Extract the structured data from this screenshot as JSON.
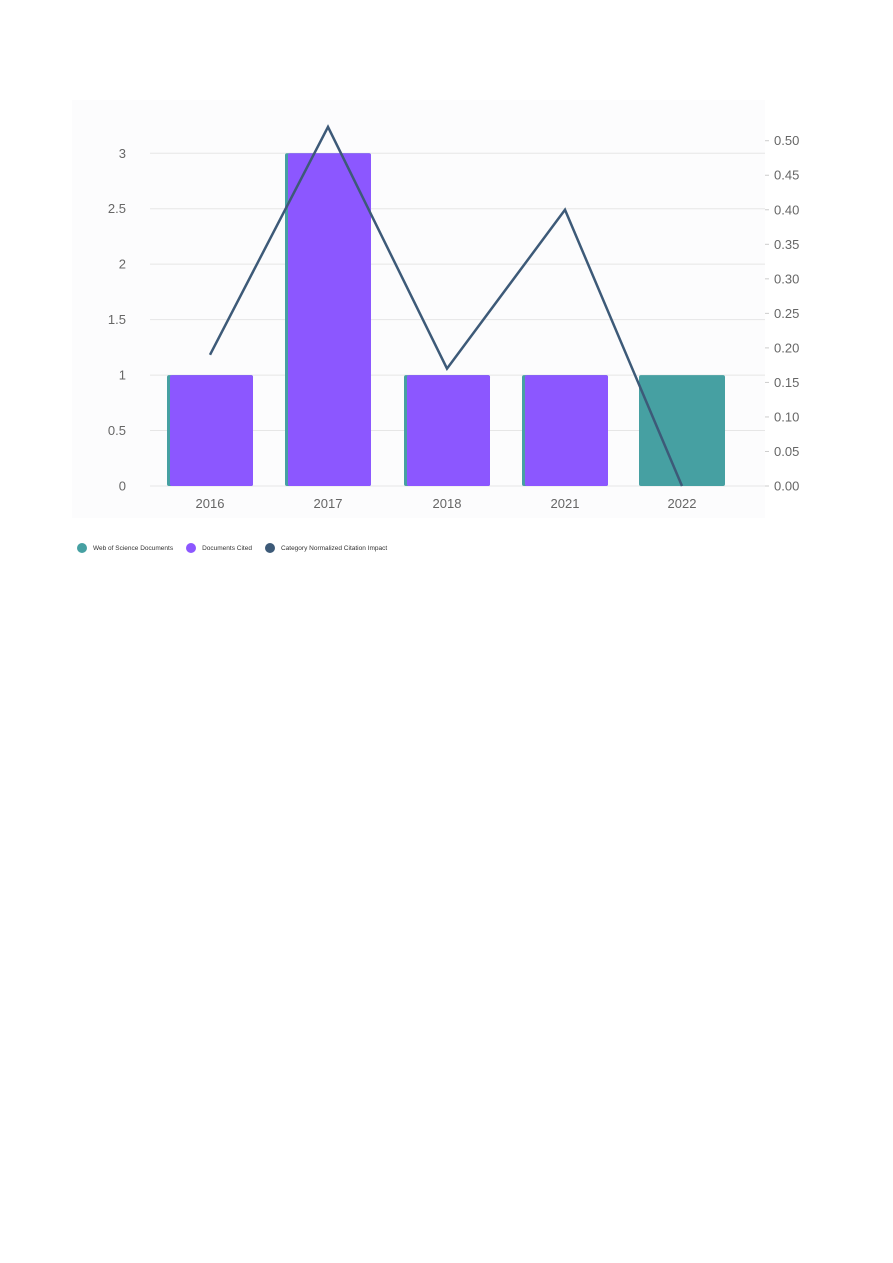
{
  "chart_data": {
    "type": "bar",
    "categories": [
      "2016",
      "2017",
      "2018",
      "2021",
      "2022"
    ],
    "series": [
      {
        "name": "Web of Science Documents",
        "kind": "bar",
        "axis": "left",
        "color": "#46a0a2",
        "values": [
          1,
          3,
          1,
          1,
          1
        ]
      },
      {
        "name": "Documents Cited",
        "kind": "bar",
        "axis": "left",
        "color": "#8c57ff",
        "values": [
          1,
          3,
          1,
          1,
          0
        ]
      },
      {
        "name": "Category Normalized Citation Impact",
        "kind": "line",
        "axis": "right",
        "color": "#3d5a78",
        "values": [
          0.19,
          0.52,
          0.17,
          0.4,
          0.0
        ]
      }
    ],
    "y_left": {
      "ylim": [
        0,
        3.3
      ],
      "ticks": [
        0,
        0.5,
        1,
        1.5,
        2,
        2.5,
        3
      ],
      "tick_labels": [
        "0",
        "0.5",
        "1",
        "1.5",
        "2",
        "2.5",
        "3"
      ]
    },
    "y_right": {
      "ylim": [
        0,
        0.53
      ],
      "ticks": [
        0,
        0.05,
        0.1,
        0.15,
        0.2,
        0.25,
        0.3,
        0.35,
        0.4,
        0.45,
        0.5
      ],
      "tick_labels": [
        "0.00",
        "0.05",
        "0.10",
        "0.15",
        "0.20",
        "0.25",
        "0.30",
        "0.35",
        "0.40",
        "0.45",
        "0.50"
      ]
    },
    "grid": true,
    "legend": "bottom-left",
    "title": "",
    "xlabel": "",
    "ylabel": ""
  }
}
